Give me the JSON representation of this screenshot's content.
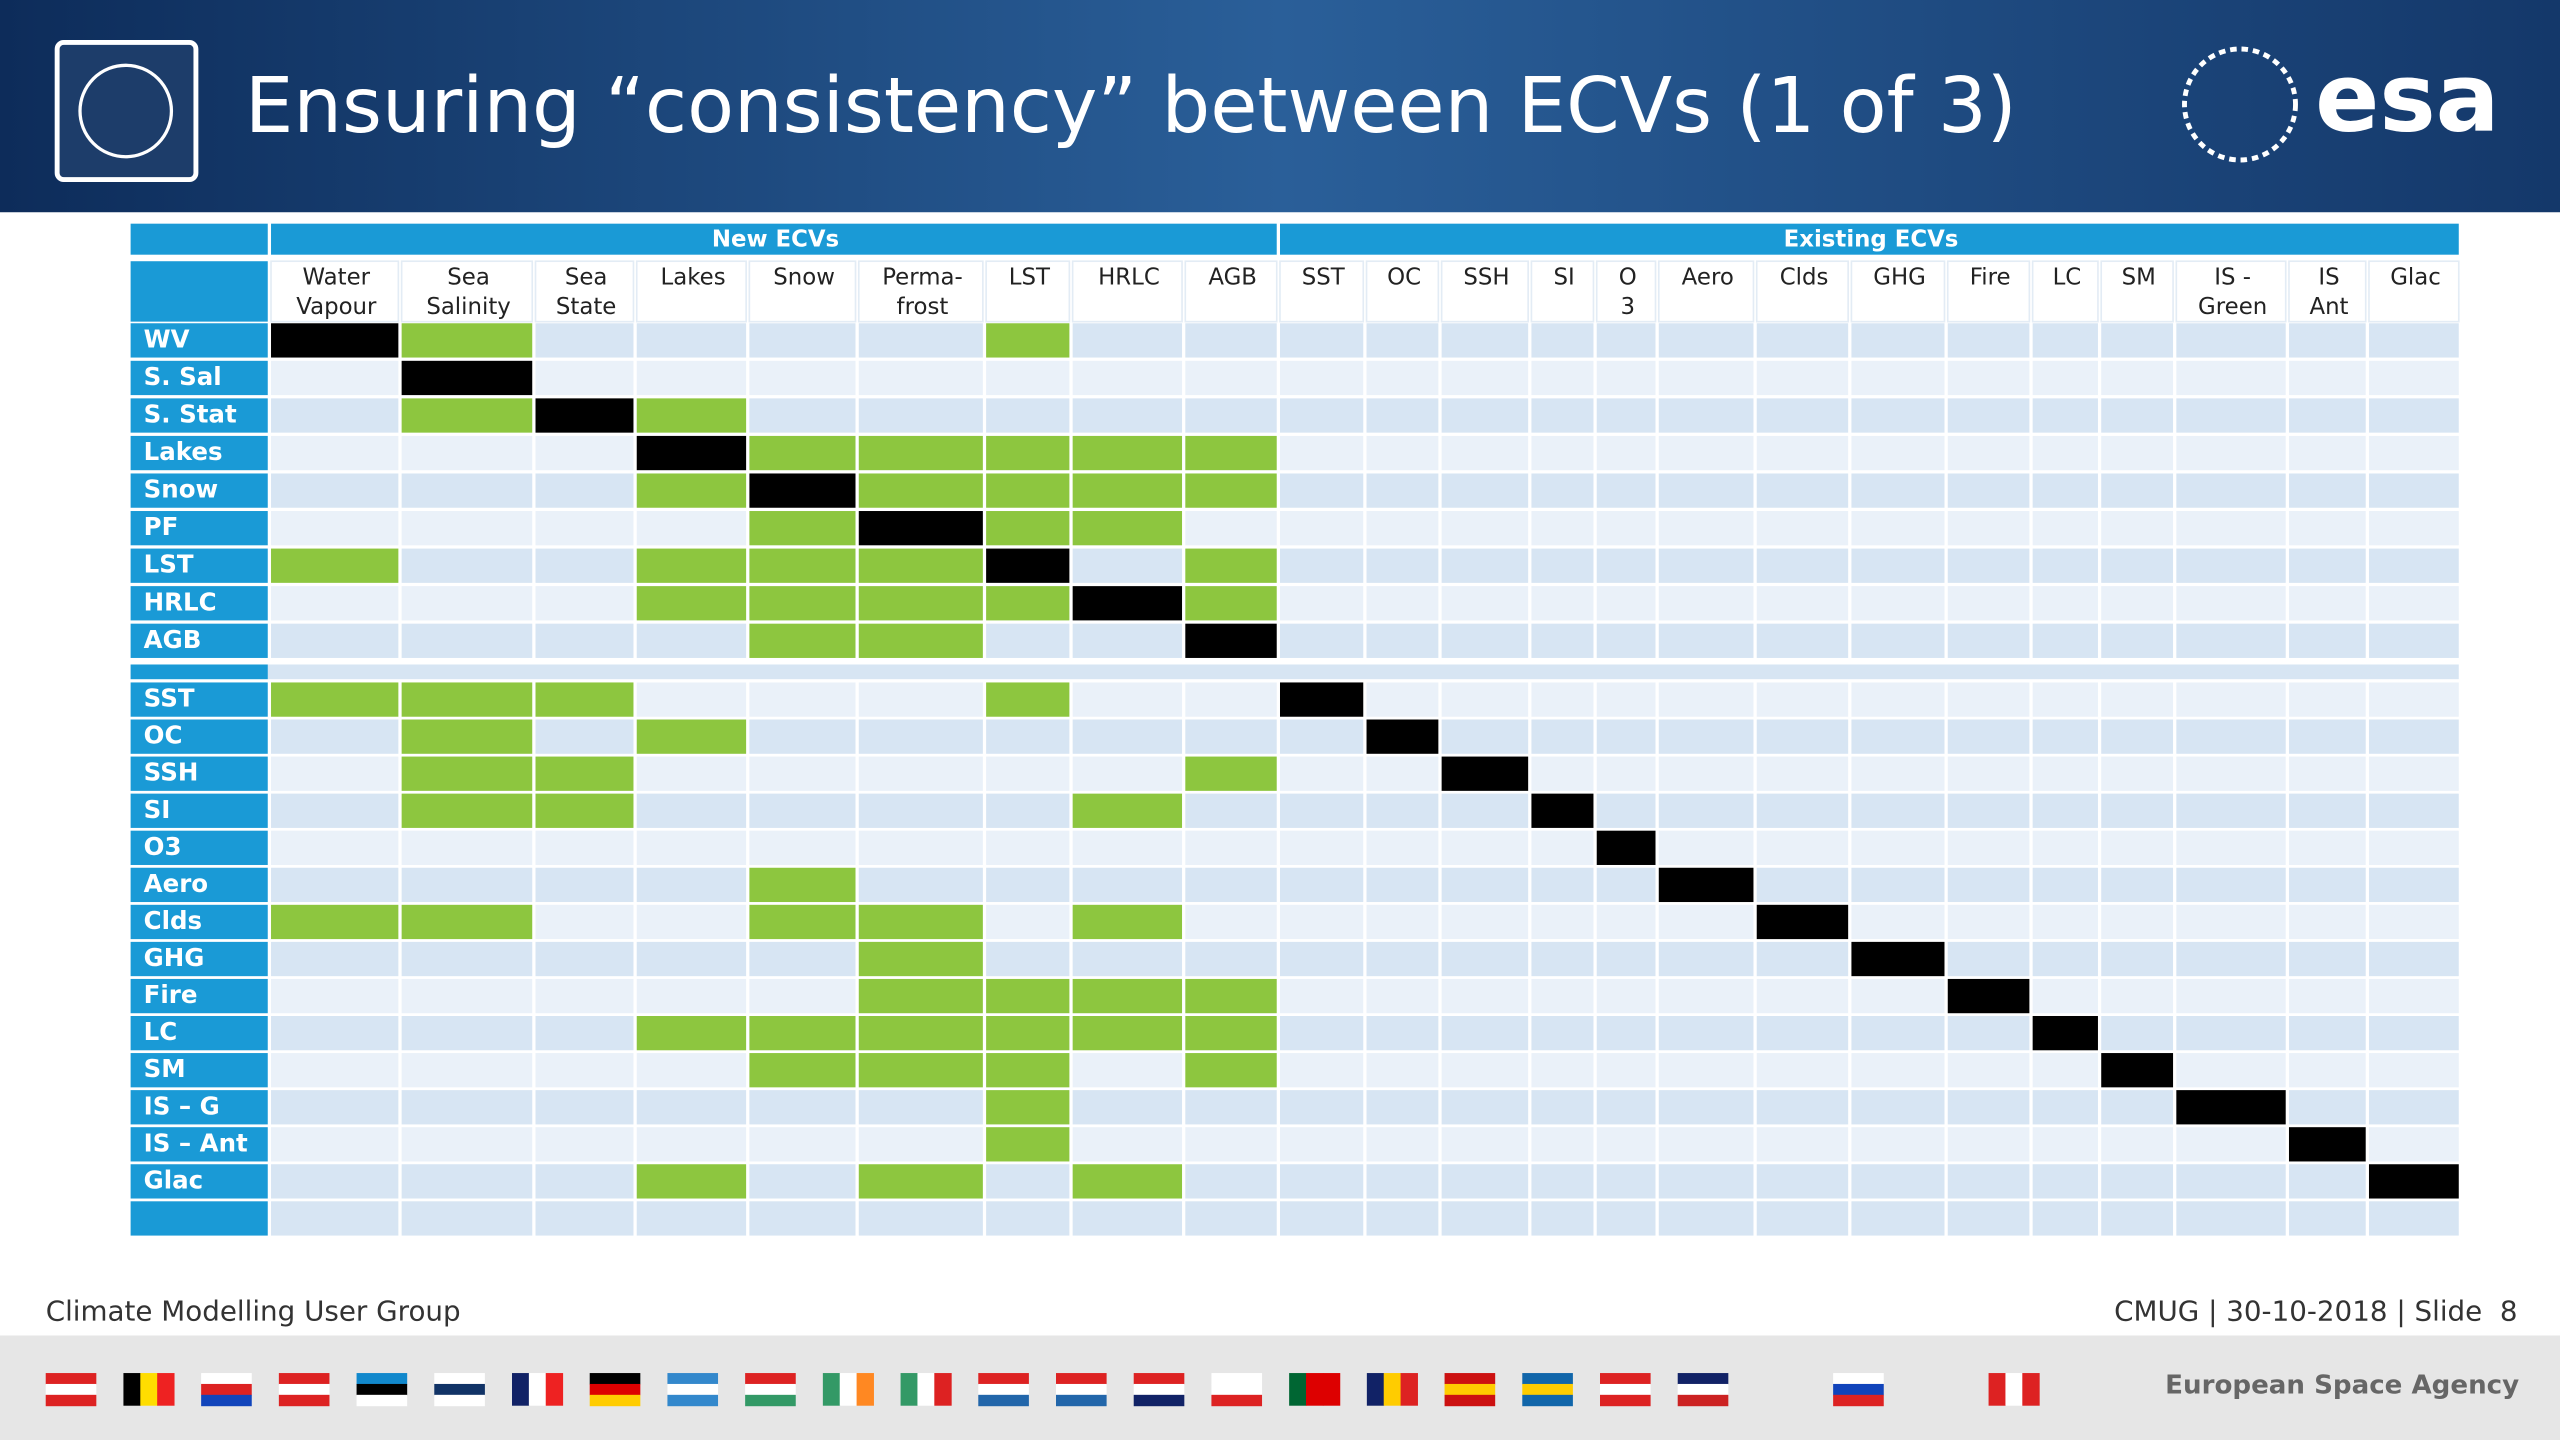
{
  "header": {
    "title": "Ensuring “consistency” between ECVs (1 of 3)",
    "logo": "esa"
  },
  "table": {
    "groups": [
      {
        "label": "New ECVs",
        "span": 9
      },
      {
        "label": "Existing ECVs",
        "span": 14
      }
    ],
    "columns": [
      "Water\nVapour",
      "Sea\nSalinity",
      "Sea\nState",
      "Lakes",
      "Snow",
      "Perma-\nfrost",
      "LST",
      "HRLC",
      "AGB",
      "SST",
      "OC",
      "SSH",
      "SI",
      "O\n3",
      "Aero",
      "Clds",
      "GHG",
      "Fire",
      "LC",
      "SM",
      "IS -\nGreen",
      "IS\nAnt",
      "Glac"
    ],
    "colors": {
      "green": "#8dc63f",
      "black": "#000000"
    },
    "rows": [
      {
        "label": "WV",
        "black": 0,
        "green": [
          1,
          6
        ]
      },
      {
        "label": "S. Sal",
        "black": 1,
        "green": []
      },
      {
        "label": "S. Stat",
        "black": 2,
        "green": [
          1,
          3
        ]
      },
      {
        "label": "Lakes",
        "black": 3,
        "green": [
          4,
          5,
          6,
          7,
          8
        ]
      },
      {
        "label": "Snow",
        "black": 4,
        "green": [
          3,
          5,
          6,
          7,
          8
        ]
      },
      {
        "label": "PF",
        "black": 5,
        "green": [
          4,
          6,
          7
        ]
      },
      {
        "label": "LST",
        "black": 6,
        "green": [
          0,
          3,
          4,
          5,
          8
        ]
      },
      {
        "label": "HRLC",
        "black": 7,
        "green": [
          3,
          4,
          5,
          6,
          8
        ]
      },
      {
        "label": "AGB",
        "black": 8,
        "green": [
          4,
          5
        ]
      },
      {
        "label": "SST",
        "black": 9,
        "green": [
          0,
          1,
          2,
          6
        ]
      },
      {
        "label": "OC",
        "black": 10,
        "green": [
          1,
          3
        ]
      },
      {
        "label": "SSH",
        "black": 11,
        "green": [
          1,
          2,
          8
        ]
      },
      {
        "label": "SI",
        "black": 12,
        "green": [
          1,
          2,
          7
        ]
      },
      {
        "label": "O3",
        "black": 13,
        "green": []
      },
      {
        "label": "Aero",
        "black": 14,
        "green": [
          4
        ]
      },
      {
        "label": "Clds",
        "black": 15,
        "green": [
          0,
          1,
          4,
          5,
          7
        ]
      },
      {
        "label": "GHG",
        "black": 16,
        "green": [
          5
        ]
      },
      {
        "label": "Fire",
        "black": 17,
        "green": [
          5,
          6,
          7,
          8
        ]
      },
      {
        "label": "LC",
        "black": 18,
        "green": [
          3,
          4,
          5,
          6,
          7,
          8
        ]
      },
      {
        "label": "SM",
        "black": 19,
        "green": [
          4,
          5,
          6,
          8
        ]
      },
      {
        "label": "IS – G",
        "black": 20,
        "green": [
          6
        ]
      },
      {
        "label": "IS – Ant",
        "black": 21,
        "green": [
          6
        ]
      },
      {
        "label": "Glac",
        "black": 22,
        "green": [
          3,
          5,
          7
        ]
      }
    ]
  },
  "footer": {
    "left": "Climate Modelling User Group",
    "right": "CMUG | 30-10-2018 | Slide  8",
    "agency": "European Space Agency"
  }
}
